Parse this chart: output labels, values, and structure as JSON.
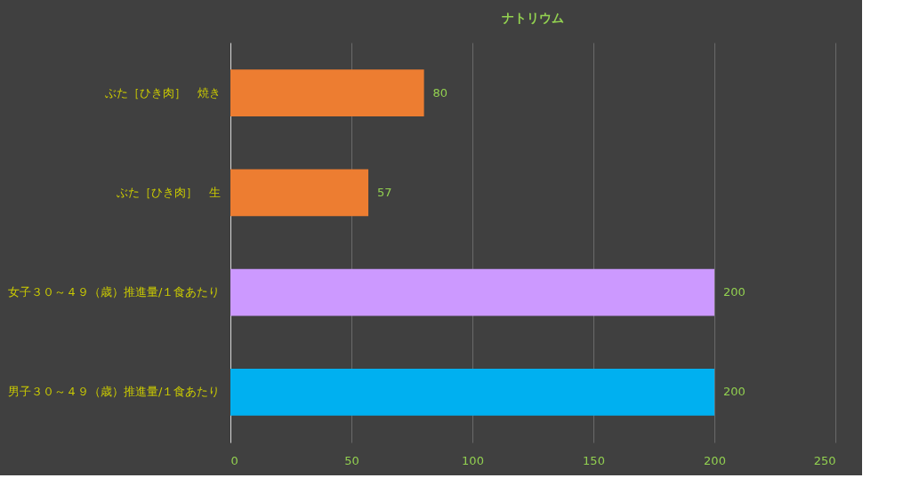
{
  "chart_data": {
    "type": "bar",
    "orientation": "horizontal",
    "title": "ナトリウム",
    "categories": [
      "ぶた［ひき肉］　焼き",
      "ぶた［ひき肉］　生",
      "女子３０～４９（歳）推進量/１食あたり",
      "男子３０～４９（歳）推進量/１食あたり"
    ],
    "values": [
      80,
      57,
      200,
      200
    ],
    "colors": [
      "#ed7d31",
      "#ed7d31",
      "#cc99ff",
      "#00b0f0"
    ],
    "xlim": [
      0,
      250
    ],
    "xticks": [
      0,
      50,
      100,
      150,
      200,
      250
    ],
    "grid": "x",
    "data_labels": true
  }
}
